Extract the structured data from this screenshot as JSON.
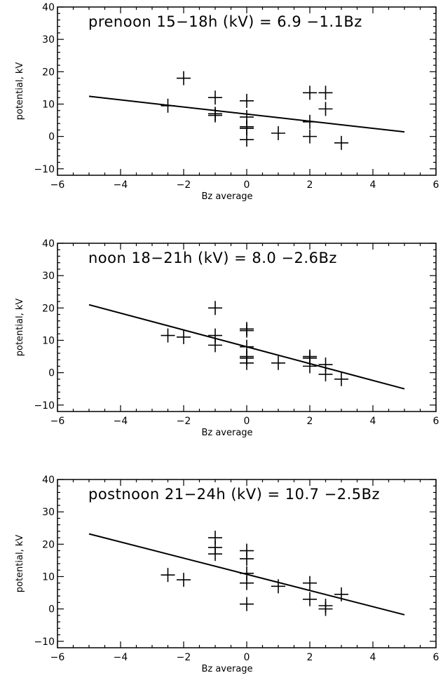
{
  "chart_data": [
    {
      "type": "scatter",
      "title": "prenoon 15−18h (kV) =   6.9 −1.1Bz",
      "xlabel": "Bz average",
      "ylabel": "potential, kV",
      "xlim": [
        -6,
        6
      ],
      "ylim": [
        -12,
        40
      ],
      "xticks": [
        "−6",
        "−4",
        "−2",
        "0",
        "2",
        "4",
        "6"
      ],
      "yticks": [
        "−10",
        "0",
        "10",
        "20",
        "30",
        "40"
      ],
      "fit": {
        "intercept": 6.9,
        "slope": -1.1,
        "x_range": [
          -5,
          5
        ]
      },
      "points": [
        {
          "x": -2.5,
          "y": 9.5
        },
        {
          "x": -2.0,
          "y": 18.0
        },
        {
          "x": -1.0,
          "y": 12.0
        },
        {
          "x": -1.0,
          "y": 7.0
        },
        {
          "x": -1.0,
          "y": 6.5
        },
        {
          "x": 0.0,
          "y": 11.0
        },
        {
          "x": 0.0,
          "y": 6.0
        },
        {
          "x": 0.0,
          "y": 3.0
        },
        {
          "x": 0.0,
          "y": 2.5
        },
        {
          "x": 0.0,
          "y": -1.0
        },
        {
          "x": 1.0,
          "y": 1.0
        },
        {
          "x": 2.0,
          "y": 13.5
        },
        {
          "x": 2.0,
          "y": 4.5
        },
        {
          "x": 2.0,
          "y": 0.0
        },
        {
          "x": 2.5,
          "y": 13.5
        },
        {
          "x": 2.5,
          "y": 8.5
        },
        {
          "x": 3.0,
          "y": -2.0
        }
      ]
    },
    {
      "type": "scatter",
      "title": "noon 18−21h (kV) =   8.0 −2.6Bz",
      "xlabel": "Bz average",
      "ylabel": "potential, kV",
      "xlim": [
        -6,
        6
      ],
      "ylim": [
        -12,
        40
      ],
      "xticks": [
        "−6",
        "−4",
        "−2",
        "0",
        "2",
        "4",
        "6"
      ],
      "yticks": [
        "−10",
        "0",
        "10",
        "20",
        "30",
        "40"
      ],
      "fit": {
        "intercept": 8.0,
        "slope": -2.6,
        "x_range": [
          -5,
          5
        ]
      },
      "points": [
        {
          "x": -2.5,
          "y": 11.5
        },
        {
          "x": -2.0,
          "y": 11.0
        },
        {
          "x": -1.0,
          "y": 20.0
        },
        {
          "x": -1.0,
          "y": 11.5
        },
        {
          "x": -1.0,
          "y": 8.5
        },
        {
          "x": 0.0,
          "y": 13.5
        },
        {
          "x": 0.0,
          "y": 13.0
        },
        {
          "x": 0.0,
          "y": 8.0
        },
        {
          "x": 0.0,
          "y": 5.0
        },
        {
          "x": 0.0,
          "y": 4.5
        },
        {
          "x": 0.0,
          "y": 3.0
        },
        {
          "x": 1.0,
          "y": 3.0
        },
        {
          "x": 2.0,
          "y": 5.0
        },
        {
          "x": 2.0,
          "y": 4.5
        },
        {
          "x": 2.0,
          "y": 2.0
        },
        {
          "x": 2.5,
          "y": 2.5
        },
        {
          "x": 2.5,
          "y": -0.5
        },
        {
          "x": 3.0,
          "y": -2.0
        }
      ]
    },
    {
      "type": "scatter",
      "title": "postnoon 21−24h (kV) = 10.7 −2.5Bz",
      "xlabel": "Bz average",
      "ylabel": "potential, kV",
      "xlim": [
        -6,
        6
      ],
      "ylim": [
        -12,
        40
      ],
      "xticks": [
        "−6",
        "−4",
        "−2",
        "0",
        "2",
        "4",
        "6"
      ],
      "yticks": [
        "−10",
        "0",
        "10",
        "20",
        "30",
        "40"
      ],
      "fit": {
        "intercept": 10.7,
        "slope": -2.5,
        "x_range": [
          -5,
          5
        ]
      },
      "points": [
        {
          "x": -2.5,
          "y": 10.5
        },
        {
          "x": -2.0,
          "y": 9.0
        },
        {
          "x": -1.0,
          "y": 22.0
        },
        {
          "x": -1.0,
          "y": 19.0
        },
        {
          "x": -1.0,
          "y": 17.0
        },
        {
          "x": 0.0,
          "y": 18.0
        },
        {
          "x": 0.0,
          "y": 15.5
        },
        {
          "x": 0.0,
          "y": 11.0
        },
        {
          "x": 0.0,
          "y": 8.0
        },
        {
          "x": 0.0,
          "y": 1.5
        },
        {
          "x": 1.0,
          "y": 7.0
        },
        {
          "x": 2.0,
          "y": 8.0
        },
        {
          "x": 2.0,
          "y": 3.0
        },
        {
          "x": 2.5,
          "y": 1.0
        },
        {
          "x": 2.5,
          "y": 0.0
        },
        {
          "x": 3.0,
          "y": 4.5
        }
      ]
    }
  ]
}
